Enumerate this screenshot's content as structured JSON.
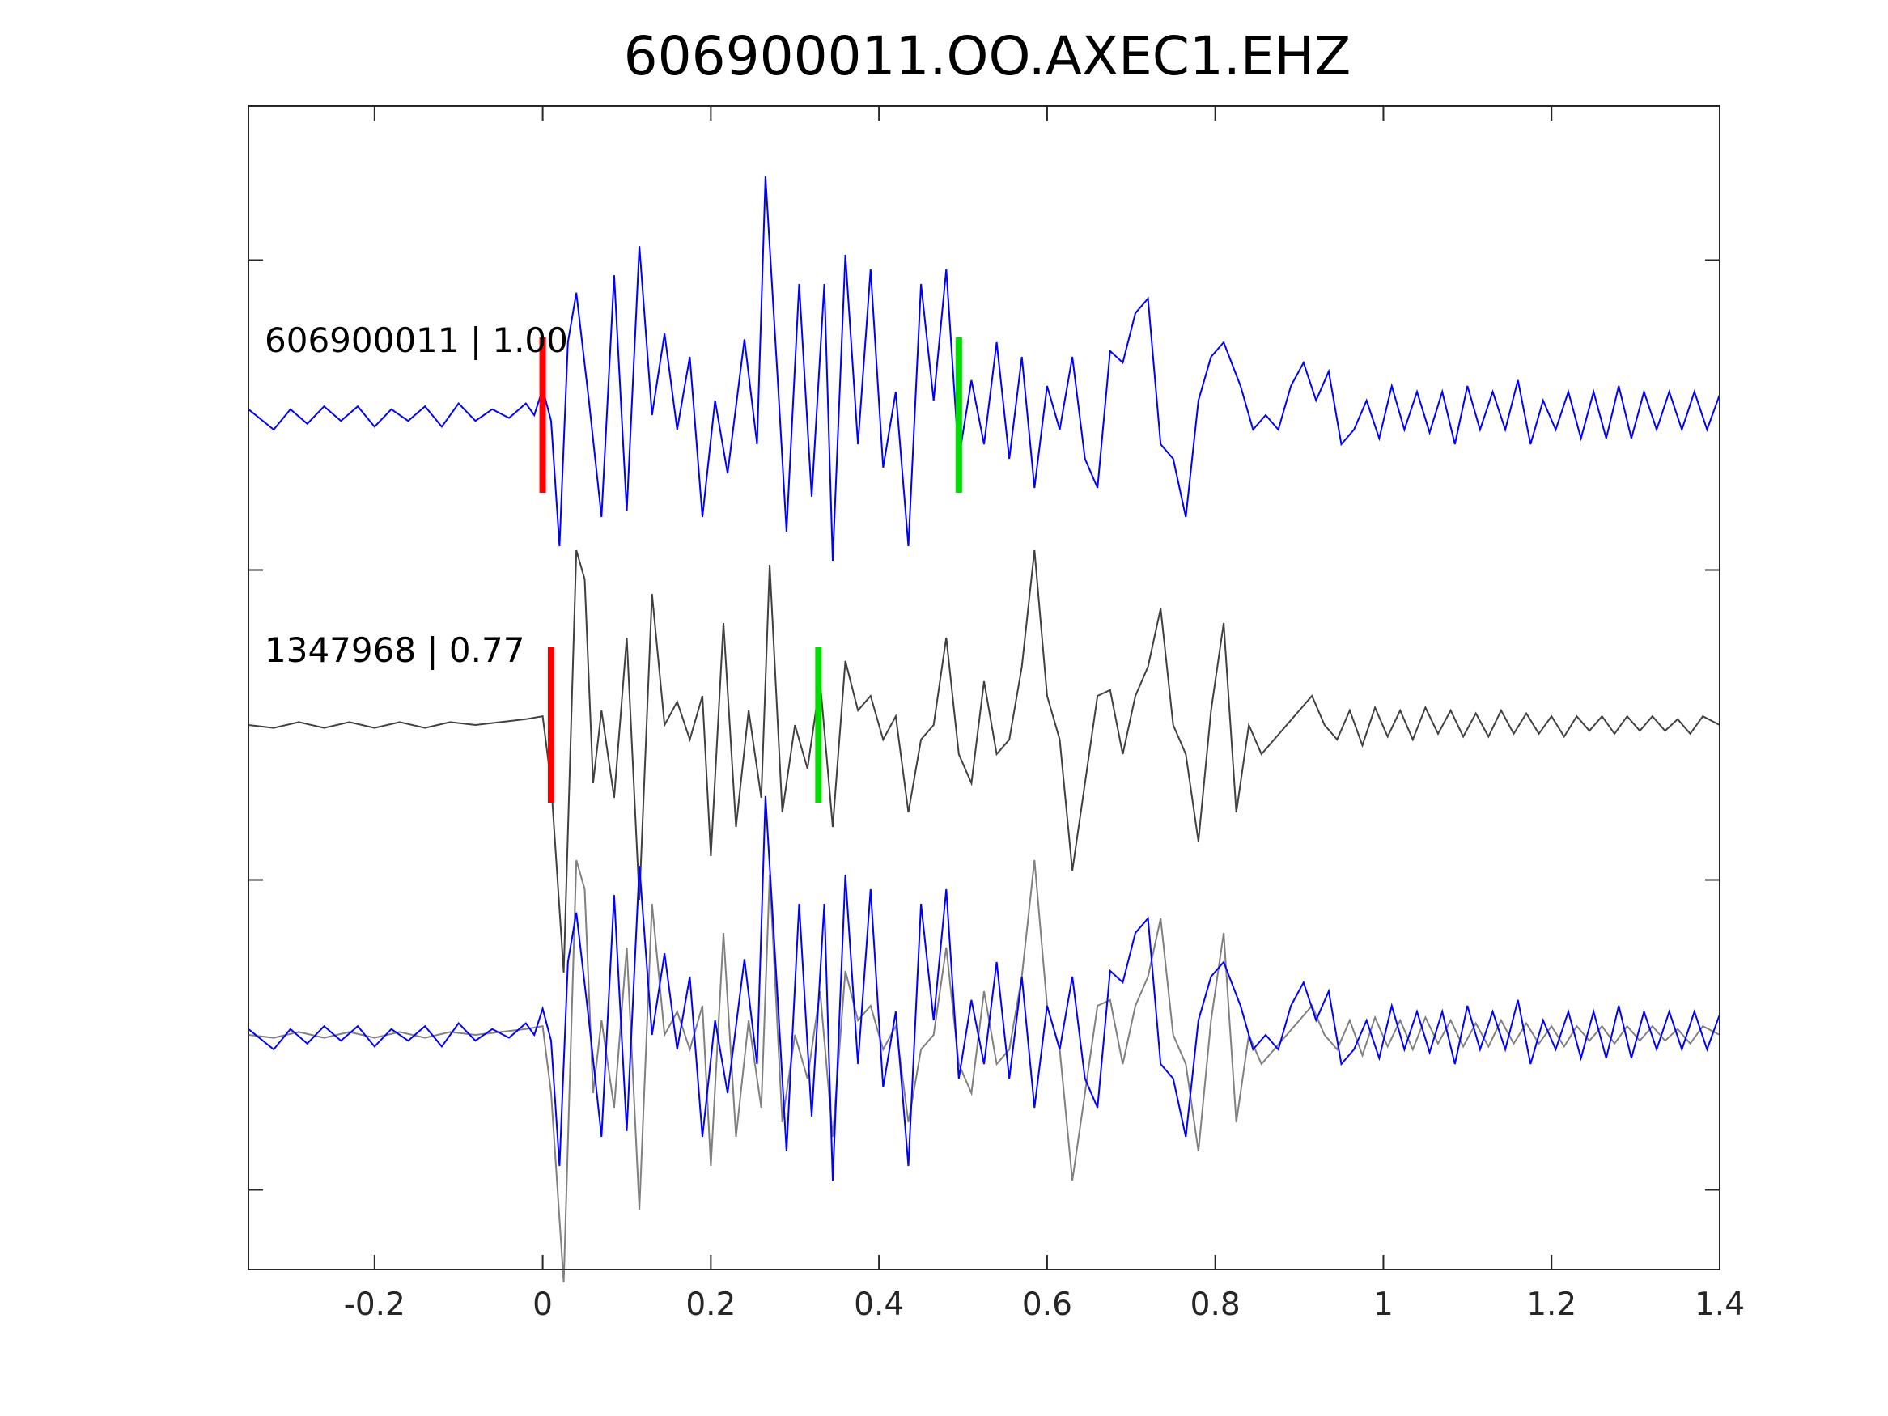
{
  "chart_data": {
    "type": "line",
    "title": "606900011.OO.AXEC1.EHZ",
    "xlabel": "",
    "ylabel": "",
    "xlim": [
      -0.35,
      1.4
    ],
    "x_ticks": [
      -0.2,
      0,
      0.2,
      0.4,
      0.6,
      0.8,
      1,
      1.2,
      1.4
    ],
    "x_tick_labels": [
      "-0.2",
      "0",
      "0.2",
      "0.4",
      "0.6",
      "0.8",
      "1",
      "1.2",
      "1.4"
    ],
    "y_ticks_labeled": false,
    "grid": false,
    "traces": [
      {
        "label": "606900011 | 1.00",
        "color": "#0000ff",
        "offset": 1,
        "picks": [
          {
            "phase_color": "#ff0000",
            "time": 0.0
          },
          {
            "phase_color": "#00dd00",
            "time": 0.495
          }
        ],
        "samples": [
          {
            "t": -0.35,
            "v": 0.02
          },
          {
            "t": -0.32,
            "v": -0.05
          },
          {
            "t": -0.3,
            "v": 0.02
          },
          {
            "t": -0.28,
            "v": -0.03
          },
          {
            "t": -0.26,
            "v": 0.03
          },
          {
            "t": -0.24,
            "v": -0.02
          },
          {
            "t": -0.22,
            "v": 0.03
          },
          {
            "t": -0.2,
            "v": -0.04
          },
          {
            "t": -0.18,
            "v": 0.02
          },
          {
            "t": -0.16,
            "v": -0.02
          },
          {
            "t": -0.14,
            "v": 0.03
          },
          {
            "t": -0.12,
            "v": -0.04
          },
          {
            "t": -0.1,
            "v": 0.04
          },
          {
            "t": -0.08,
            "v": -0.02
          },
          {
            "t": -0.06,
            "v": 0.02
          },
          {
            "t": -0.04,
            "v": -0.01
          },
          {
            "t": -0.02,
            "v": 0.04
          },
          {
            "t": -0.01,
            "v": 0.0
          },
          {
            "t": 0.0,
            "v": 0.09
          },
          {
            "t": 0.01,
            "v": -0.02
          },
          {
            "t": 0.02,
            "v": -0.45
          },
          {
            "t": 0.03,
            "v": 0.25
          },
          {
            "t": 0.04,
            "v": 0.42
          },
          {
            "t": 0.055,
            "v": 0.05
          },
          {
            "t": 0.07,
            "v": -0.35
          },
          {
            "t": 0.085,
            "v": 0.48
          },
          {
            "t": 0.1,
            "v": -0.33
          },
          {
            "t": 0.115,
            "v": 0.58
          },
          {
            "t": 0.13,
            "v": 0.0
          },
          {
            "t": 0.145,
            "v": 0.28
          },
          {
            "t": 0.16,
            "v": -0.05
          },
          {
            "t": 0.175,
            "v": 0.2
          },
          {
            "t": 0.19,
            "v": -0.35
          },
          {
            "t": 0.205,
            "v": 0.05
          },
          {
            "t": 0.22,
            "v": -0.2
          },
          {
            "t": 0.24,
            "v": 0.26
          },
          {
            "t": 0.255,
            "v": -0.1
          },
          {
            "t": 0.265,
            "v": 0.82
          },
          {
            "t": 0.28,
            "v": 0.1
          },
          {
            "t": 0.29,
            "v": -0.4
          },
          {
            "t": 0.305,
            "v": 0.45
          },
          {
            "t": 0.32,
            "v": -0.28
          },
          {
            "t": 0.335,
            "v": 0.45
          },
          {
            "t": 0.345,
            "v": -0.5
          },
          {
            "t": 0.36,
            "v": 0.55
          },
          {
            "t": 0.375,
            "v": -0.1
          },
          {
            "t": 0.39,
            "v": 0.5
          },
          {
            "t": 0.405,
            "v": -0.18
          },
          {
            "t": 0.42,
            "v": 0.08
          },
          {
            "t": 0.435,
            "v": -0.45
          },
          {
            "t": 0.45,
            "v": 0.45
          },
          {
            "t": 0.465,
            "v": 0.05
          },
          {
            "t": 0.48,
            "v": 0.5
          },
          {
            "t": 0.495,
            "v": -0.15
          },
          {
            "t": 0.51,
            "v": 0.12
          },
          {
            "t": 0.525,
            "v": -0.1
          },
          {
            "t": 0.54,
            "v": 0.25
          },
          {
            "t": 0.555,
            "v": -0.15
          },
          {
            "t": 0.57,
            "v": 0.2
          },
          {
            "t": 0.585,
            "v": -0.25
          },
          {
            "t": 0.6,
            "v": 0.1
          },
          {
            "t": 0.615,
            "v": -0.05
          },
          {
            "t": 0.63,
            "v": 0.2
          },
          {
            "t": 0.645,
            "v": -0.15
          },
          {
            "t": 0.66,
            "v": -0.25
          },
          {
            "t": 0.675,
            "v": 0.22
          },
          {
            "t": 0.69,
            "v": 0.18
          },
          {
            "t": 0.705,
            "v": 0.35
          },
          {
            "t": 0.72,
            "v": 0.4
          },
          {
            "t": 0.735,
            "v": -0.1
          },
          {
            "t": 0.75,
            "v": -0.15
          },
          {
            "t": 0.765,
            "v": -0.35
          },
          {
            "t": 0.78,
            "v": 0.05
          },
          {
            "t": 0.795,
            "v": 0.2
          },
          {
            "t": 0.81,
            "v": 0.25
          },
          {
            "t": 0.83,
            "v": 0.1
          },
          {
            "t": 0.845,
            "v": -0.05
          },
          {
            "t": 0.86,
            "v": 0.0
          },
          {
            "t": 0.875,
            "v": -0.05
          },
          {
            "t": 0.89,
            "v": 0.1
          },
          {
            "t": 0.905,
            "v": 0.18
          },
          {
            "t": 0.92,
            "v": 0.05
          },
          {
            "t": 0.935,
            "v": 0.15
          },
          {
            "t": 0.95,
            "v": -0.1
          },
          {
            "t": 0.965,
            "v": -0.05
          },
          {
            "t": 0.98,
            "v": 0.05
          },
          {
            "t": 0.995,
            "v": -0.08
          },
          {
            "t": 1.01,
            "v": 0.1
          },
          {
            "t": 1.025,
            "v": -0.05
          },
          {
            "t": 1.04,
            "v": 0.08
          },
          {
            "t": 1.055,
            "v": -0.06
          },
          {
            "t": 1.07,
            "v": 0.08
          },
          {
            "t": 1.085,
            "v": -0.1
          },
          {
            "t": 1.1,
            "v": 0.1
          },
          {
            "t": 1.115,
            "v": -0.05
          },
          {
            "t": 1.13,
            "v": 0.08
          },
          {
            "t": 1.145,
            "v": -0.05
          },
          {
            "t": 1.16,
            "v": 0.12
          },
          {
            "t": 1.175,
            "v": -0.1
          },
          {
            "t": 1.19,
            "v": 0.05
          },
          {
            "t": 1.205,
            "v": -0.05
          },
          {
            "t": 1.22,
            "v": 0.08
          },
          {
            "t": 1.235,
            "v": -0.08
          },
          {
            "t": 1.25,
            "v": 0.08
          },
          {
            "t": 1.265,
            "v": -0.08
          },
          {
            "t": 1.28,
            "v": 0.1
          },
          {
            "t": 1.295,
            "v": -0.08
          },
          {
            "t": 1.31,
            "v": 0.08
          },
          {
            "t": 1.325,
            "v": -0.05
          },
          {
            "t": 1.34,
            "v": 0.08
          },
          {
            "t": 1.355,
            "v": -0.05
          },
          {
            "t": 1.37,
            "v": 0.08
          },
          {
            "t": 1.385,
            "v": -0.05
          },
          {
            "t": 1.4,
            "v": 0.07
          }
        ]
      },
      {
        "label": "1347968 | 0.77",
        "color": "#404040",
        "offset": 0,
        "picks": [
          {
            "phase_color": "#ff0000",
            "time": 0.01
          },
          {
            "phase_color": "#00dd00",
            "time": 0.328
          }
        ],
        "samples": [
          {
            "t": -0.35,
            "v": 0.0
          },
          {
            "t": -0.32,
            "v": -0.01
          },
          {
            "t": -0.29,
            "v": 0.01
          },
          {
            "t": -0.26,
            "v": -0.01
          },
          {
            "t": -0.23,
            "v": 0.01
          },
          {
            "t": -0.2,
            "v": -0.01
          },
          {
            "t": -0.17,
            "v": 0.01
          },
          {
            "t": -0.14,
            "v": -0.01
          },
          {
            "t": -0.11,
            "v": 0.01
          },
          {
            "t": -0.08,
            "v": 0.0
          },
          {
            "t": -0.05,
            "v": 0.01
          },
          {
            "t": -0.02,
            "v": 0.02
          },
          {
            "t": 0.0,
            "v": 0.03
          },
          {
            "t": 0.01,
            "v": -0.2
          },
          {
            "t": 0.025,
            "v": -0.85
          },
          {
            "t": 0.04,
            "v": 0.6
          },
          {
            "t": 0.05,
            "v": 0.5
          },
          {
            "t": 0.06,
            "v": -0.2
          },
          {
            "t": 0.07,
            "v": 0.05
          },
          {
            "t": 0.085,
            "v": -0.25
          },
          {
            "t": 0.1,
            "v": 0.3
          },
          {
            "t": 0.115,
            "v": -0.6
          },
          {
            "t": 0.13,
            "v": 0.45
          },
          {
            "t": 0.145,
            "v": 0.0
          },
          {
            "t": 0.16,
            "v": 0.08
          },
          {
            "t": 0.175,
            "v": -0.05
          },
          {
            "t": 0.19,
            "v": 0.1
          },
          {
            "t": 0.2,
            "v": -0.45
          },
          {
            "t": 0.215,
            "v": 0.35
          },
          {
            "t": 0.23,
            "v": -0.35
          },
          {
            "t": 0.245,
            "v": 0.05
          },
          {
            "t": 0.26,
            "v": -0.25
          },
          {
            "t": 0.27,
            "v": 0.55
          },
          {
            "t": 0.285,
            "v": -0.3
          },
          {
            "t": 0.3,
            "v": 0.0
          },
          {
            "t": 0.315,
            "v": -0.15
          },
          {
            "t": 0.33,
            "v": 0.15
          },
          {
            "t": 0.345,
            "v": -0.35
          },
          {
            "t": 0.36,
            "v": 0.22
          },
          {
            "t": 0.375,
            "v": 0.05
          },
          {
            "t": 0.39,
            "v": 0.1
          },
          {
            "t": 0.405,
            "v": -0.05
          },
          {
            "t": 0.42,
            "v": 0.03
          },
          {
            "t": 0.435,
            "v": -0.3
          },
          {
            "t": 0.45,
            "v": -0.05
          },
          {
            "t": 0.465,
            "v": 0.0
          },
          {
            "t": 0.48,
            "v": 0.3
          },
          {
            "t": 0.495,
            "v": -0.1
          },
          {
            "t": 0.51,
            "v": -0.2
          },
          {
            "t": 0.525,
            "v": 0.15
          },
          {
            "t": 0.54,
            "v": -0.1
          },
          {
            "t": 0.555,
            "v": -0.05
          },
          {
            "t": 0.57,
            "v": 0.2
          },
          {
            "t": 0.585,
            "v": 0.6
          },
          {
            "t": 0.6,
            "v": 0.1
          },
          {
            "t": 0.615,
            "v": -0.05
          },
          {
            "t": 0.63,
            "v": -0.5
          },
          {
            "t": 0.645,
            "v": -0.2
          },
          {
            "t": 0.66,
            "v": 0.1
          },
          {
            "t": 0.675,
            "v": 0.12
          },
          {
            "t": 0.69,
            "v": -0.1
          },
          {
            "t": 0.705,
            "v": 0.1
          },
          {
            "t": 0.72,
            "v": 0.2
          },
          {
            "t": 0.735,
            "v": 0.4
          },
          {
            "t": 0.75,
            "v": 0.0
          },
          {
            "t": 0.765,
            "v": -0.1
          },
          {
            "t": 0.78,
            "v": -0.4
          },
          {
            "t": 0.795,
            "v": 0.05
          },
          {
            "t": 0.81,
            "v": 0.35
          },
          {
            "t": 0.825,
            "v": -0.3
          },
          {
            "t": 0.84,
            "v": 0.0
          },
          {
            "t": 0.855,
            "v": -0.1
          },
          {
            "t": 0.87,
            "v": -0.05
          },
          {
            "t": 0.885,
            "v": 0.0
          },
          {
            "t": 0.9,
            "v": 0.05
          },
          {
            "t": 0.915,
            "v": 0.1
          },
          {
            "t": 0.93,
            "v": 0.0
          },
          {
            "t": 0.945,
            "v": -0.05
          },
          {
            "t": 0.96,
            "v": 0.05
          },
          {
            "t": 0.975,
            "v": -0.07
          },
          {
            "t": 0.99,
            "v": 0.06
          },
          {
            "t": 1.005,
            "v": -0.04
          },
          {
            "t": 1.02,
            "v": 0.05
          },
          {
            "t": 1.035,
            "v": -0.05
          },
          {
            "t": 1.05,
            "v": 0.06
          },
          {
            "t": 1.065,
            "v": -0.03
          },
          {
            "t": 1.08,
            "v": 0.05
          },
          {
            "t": 1.095,
            "v": -0.04
          },
          {
            "t": 1.11,
            "v": 0.04
          },
          {
            "t": 1.125,
            "v": -0.04
          },
          {
            "t": 1.14,
            "v": 0.05
          },
          {
            "t": 1.155,
            "v": -0.03
          },
          {
            "t": 1.17,
            "v": 0.04
          },
          {
            "t": 1.185,
            "v": -0.03
          },
          {
            "t": 1.2,
            "v": 0.03
          },
          {
            "t": 1.215,
            "v": -0.04
          },
          {
            "t": 1.23,
            "v": 0.03
          },
          {
            "t": 1.245,
            "v": -0.02
          },
          {
            "t": 1.26,
            "v": 0.03
          },
          {
            "t": 1.275,
            "v": -0.03
          },
          {
            "t": 1.29,
            "v": 0.03
          },
          {
            "t": 1.305,
            "v": -0.02
          },
          {
            "t": 1.32,
            "v": 0.03
          },
          {
            "t": 1.335,
            "v": -0.02
          },
          {
            "t": 1.35,
            "v": 0.02
          },
          {
            "t": 1.365,
            "v": -0.03
          },
          {
            "t": 1.38,
            "v": 0.03
          },
          {
            "t": 1.4,
            "v": 0.0
          }
        ]
      }
    ],
    "overlay": {
      "offset": -1,
      "series": [
        "606900011 | 1.00",
        "1347968 | 0.77"
      ],
      "colors": [
        "#0000ff",
        "#808080"
      ]
    }
  }
}
